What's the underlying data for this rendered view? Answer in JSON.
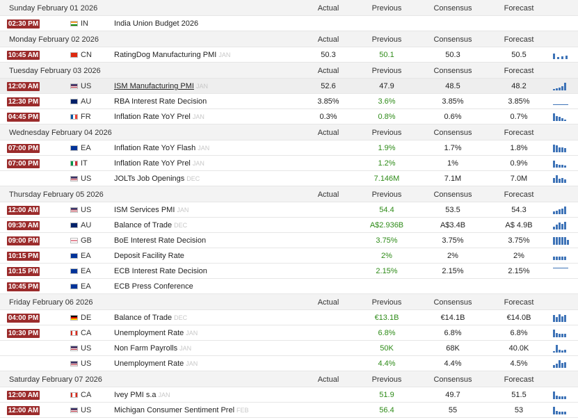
{
  "columns": {
    "actual": "Actual",
    "previous": "Previous",
    "consensus": "Consensus",
    "forecast": "Forecast"
  },
  "days": [
    {
      "date": "Sunday February 01 2026",
      "events": [
        {
          "time": "02:30 PM",
          "country": "IN",
          "flag": "in",
          "event": "India Union Budget 2026",
          "period": "",
          "actual": "",
          "previous": "",
          "consensus": "",
          "forecast": "",
          "previous_green": false,
          "spark": []
        }
      ]
    },
    {
      "date": "Monday February 02 2026",
      "events": [
        {
          "time": "10:45 AM",
          "country": "CN",
          "flag": "cn",
          "event": "RatingDog Manufacturing PMI",
          "period": "JAN",
          "actual": "50.3",
          "previous": "50.1",
          "consensus": "50.3",
          "forecast": "50.5",
          "previous_green": true,
          "spark": [
            0.7,
            0.25,
            0.3,
            0.45
          ]
        }
      ]
    },
    {
      "date": "Tuesday February 03 2026",
      "events": [
        {
          "time": "12:00 AM",
          "country": "US",
          "flag": "us",
          "event": "ISM Manufacturing PMI",
          "period": "JAN",
          "actual": "52.6",
          "previous": "47.9",
          "consensus": "48.5",
          "forecast": "48.2",
          "previous_green": false,
          "spark": [
            0.2,
            0.25,
            0.35,
            0.5,
            0.9
          ],
          "highlight": true,
          "link": true
        },
        {
          "time": "12:30 PM",
          "country": "AU",
          "flag": "au",
          "event": "RBA Interest Rate Decision",
          "period": "",
          "actual": "3.85%",
          "previous": "3.6%",
          "consensus": "3.85%",
          "forecast": "3.85%",
          "previous_green": true,
          "spark": [
            0.12,
            0.12,
            0.12,
            0.12,
            0.12,
            0.12
          ]
        },
        {
          "time": "04:45 PM",
          "country": "FR",
          "flag": "fr",
          "event": "Inflation Rate YoY Prel",
          "period": "JAN",
          "actual": "0.3%",
          "previous": "0.8%",
          "consensus": "0.6%",
          "forecast": "0.7%",
          "previous_green": true,
          "spark": [
            0.95,
            0.6,
            0.5,
            0.3,
            0.2
          ]
        }
      ]
    },
    {
      "date": "Wednesday February 04 2026",
      "events": [
        {
          "time": "07:00 PM",
          "country": "EA",
          "flag": "ea",
          "event": "Inflation Rate YoY Flash",
          "period": "JAN",
          "actual": "",
          "previous": "1.9%",
          "consensus": "1.7%",
          "forecast": "1.8%",
          "previous_green": true,
          "spark": [
            0.9,
            0.85,
            0.6,
            0.55,
            0.5
          ]
        },
        {
          "time": "07:00 PM",
          "country": "IT",
          "flag": "it",
          "event": "Inflation Rate YoY Prel",
          "period": "JAN",
          "actual": "",
          "previous": "1.2%",
          "consensus": "1%",
          "forecast": "0.9%",
          "previous_green": true,
          "spark": [
            0.85,
            0.4,
            0.35,
            0.3,
            0.25
          ]
        },
        {
          "time": "",
          "country": "US",
          "flag": "us",
          "event": "JOLTs Job Openings",
          "period": "DEC",
          "actual": "",
          "previous": "7.146M",
          "consensus": "7.1M",
          "forecast": "7.0M",
          "previous_green": true,
          "spark": [
            0.6,
            0.95,
            0.5,
            0.55,
            0.4
          ]
        }
      ]
    },
    {
      "date": "Thursday February 05 2026",
      "events": [
        {
          "time": "12:00 AM",
          "country": "US",
          "flag": "us",
          "event": "ISM Services PMI",
          "period": "JAN",
          "actual": "",
          "previous": "54.4",
          "consensus": "53.5",
          "forecast": "54.3",
          "previous_green": true,
          "spark": [
            0.3,
            0.45,
            0.55,
            0.7,
            0.95
          ]
        },
        {
          "time": "09:30 AM",
          "country": "AU",
          "flag": "au",
          "event": "Balance of Trade",
          "period": "DEC",
          "actual": "",
          "previous": "A$2.936B",
          "consensus": "A$3.4B",
          "forecast": "A$ 4.9B",
          "previous_green": true,
          "spark": [
            0.3,
            0.6,
            0.85,
            0.7,
            0.95
          ]
        },
        {
          "time": "09:00 PM",
          "country": "GB",
          "flag": "gb",
          "event": "BoE Interest Rate Decision",
          "period": "",
          "actual": "",
          "previous": "3.75%",
          "consensus": "3.75%",
          "forecast": "3.75%",
          "previous_green": true,
          "spark": [
            0.95,
            0.95,
            0.95,
            0.95,
            0.95,
            0.6
          ]
        },
        {
          "time": "10:15 PM",
          "country": "EA",
          "flag": "ea",
          "event": "Deposit Facility Rate",
          "period": "",
          "actual": "",
          "previous": "2%",
          "consensus": "2%",
          "forecast": "2%",
          "previous_green": true,
          "spark": [
            0.4,
            0.4,
            0.4,
            0.4,
            0.4
          ]
        },
        {
          "time": "10:15 PM",
          "country": "EA",
          "flag": "ea",
          "event": "ECB Interest Rate Decision",
          "period": "",
          "actual": "",
          "previous": "2.15%",
          "consensus": "2.15%",
          "forecast": "2.15%",
          "previous_green": true,
          "spark": [
            0.95,
            0.95,
            0.95,
            0.95,
            0.95,
            0.95
          ]
        },
        {
          "time": "10:45 PM",
          "country": "EA",
          "flag": "ea",
          "event": "ECB Press Conference",
          "period": "",
          "actual": "",
          "previous": "",
          "consensus": "",
          "forecast": "",
          "previous_green": false,
          "spark": []
        }
      ]
    },
    {
      "date": "Friday February 06 2026",
      "events": [
        {
          "time": "04:00 PM",
          "country": "DE",
          "flag": "de",
          "event": "Balance of Trade",
          "period": "DEC",
          "actual": "",
          "previous": "€13.1B",
          "consensus": "€14.1B",
          "forecast": "€14.0B",
          "previous_green": true,
          "spark": [
            0.8,
            0.6,
            0.95,
            0.7,
            0.85
          ]
        },
        {
          "time": "10:30 PM",
          "country": "CA",
          "flag": "ca",
          "event": "Unemployment Rate",
          "period": "JAN",
          "actual": "",
          "previous": "6.8%",
          "consensus": "6.8%",
          "forecast": "6.8%",
          "previous_green": true,
          "spark": [
            0.95,
            0.5,
            0.45,
            0.45,
            0.4
          ]
        },
        {
          "time": "",
          "country": "US",
          "flag": "us",
          "event": "Non Farm Payrolls",
          "period": "JAN",
          "actual": "",
          "previous": "50K",
          "consensus": "68K",
          "forecast": "40.0K",
          "previous_green": true,
          "spark": [
            0.2,
            0.9,
            0.3,
            0.25,
            0.3
          ]
        },
        {
          "time": "",
          "country": "US",
          "flag": "us",
          "event": "Unemployment Rate",
          "period": "JAN",
          "actual": "",
          "previous": "4.4%",
          "consensus": "4.4%",
          "forecast": "4.5%",
          "previous_green": true,
          "spark": [
            0.3,
            0.5,
            0.95,
            0.6,
            0.7
          ]
        }
      ]
    },
    {
      "date": "Saturday February 07 2026",
      "events": [
        {
          "time": "12:00 AM",
          "country": "CA",
          "flag": "ca",
          "event": "Ivey PMI s.a",
          "period": "JAN",
          "actual": "",
          "previous": "51.9",
          "consensus": "49.7",
          "forecast": "51.5",
          "previous_green": true,
          "spark": [
            0.95,
            0.4,
            0.35,
            0.3,
            0.35
          ]
        },
        {
          "time": "12:00 AM",
          "country": "US",
          "flag": "us",
          "event": "Michigan Consumer Sentiment Prel",
          "period": "FEB",
          "actual": "",
          "previous": "56.4",
          "consensus": "55",
          "forecast": "53",
          "previous_green": true,
          "spark": [
            0.95,
            0.4,
            0.3,
            0.35,
            0.3
          ]
        }
      ]
    }
  ]
}
